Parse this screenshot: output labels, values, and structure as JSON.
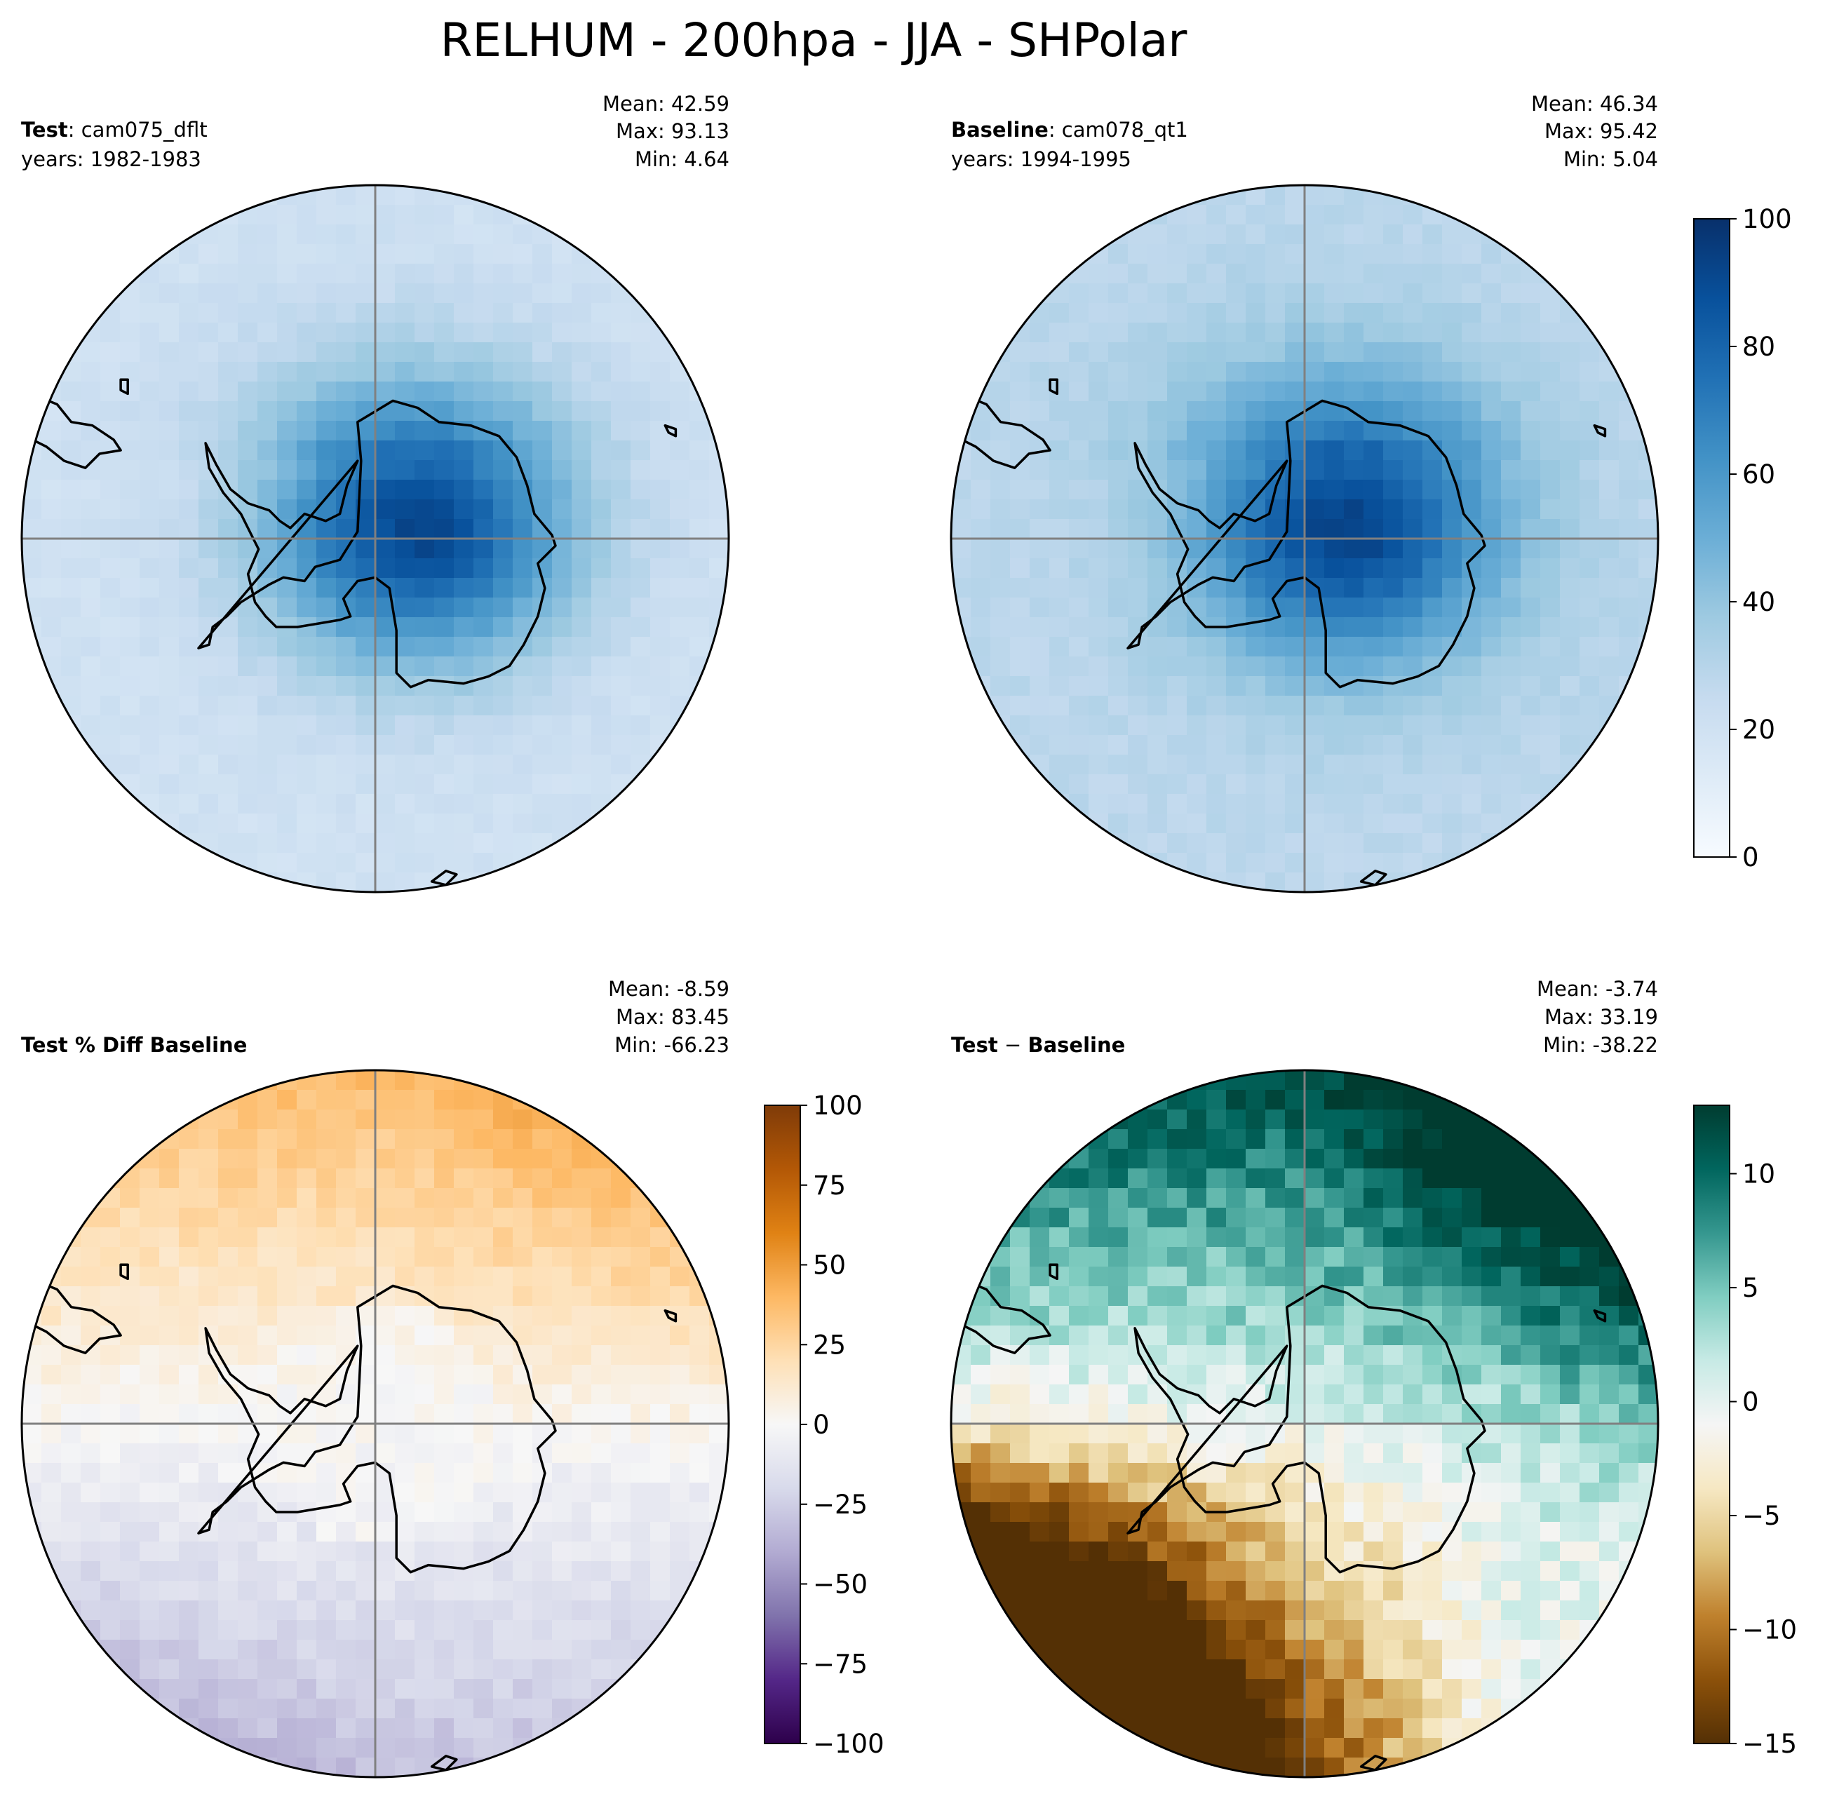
{
  "figure_title": "RELHUM - 200hpa - JJA - SHPolar",
  "panels": [
    {
      "id": "test",
      "label_bold": "Test",
      "label_rest": ": cam075_dflt",
      "years": "years: 1982-1983",
      "stats": {
        "mean": "Mean: 42.59",
        "max": "Max: 93.13",
        "min": "Min:  4.64"
      },
      "colormap": "Blues",
      "field": {
        "center_value": 92,
        "edge_value": 20,
        "bias": 0
      }
    },
    {
      "id": "baseline",
      "label_bold": "Baseline",
      "label_rest": ": cam078_qt1",
      "years": "years: 1994-1995",
      "stats": {
        "mean": "Mean: 46.34",
        "max": "Max: 95.42",
        "min": "Min:  5.04"
      },
      "colormap": "Blues",
      "field": {
        "center_value": 93,
        "edge_value": 28,
        "bias": 0
      }
    },
    {
      "id": "pctdiff",
      "label_bold": "Test % Diff Baseline",
      "label_rest": "",
      "years": "",
      "stats": {
        "mean": "Mean: -8.59",
        "max": "Max: 83.45",
        "min": "Min: -66.23"
      },
      "colormap": "PuOr_r",
      "field": {
        "north_value": 32,
        "south_value": -35,
        "center_value": 0
      }
    },
    {
      "id": "diff",
      "label_bold": "Test",
      "label_op": " − ",
      "label_rest": "Baseline",
      "years": "",
      "stats": {
        "mean": "Mean: -3.74",
        "max": "Max: 33.19",
        "min": "Min: -38.22"
      },
      "colormap": "BrBG",
      "field": {
        "north_value": 9,
        "south_value": -15,
        "east_value": 7,
        "west_value": -9
      }
    }
  ],
  "colorbars": [
    {
      "id": "cbar-main",
      "ticks": [
        "0",
        "20",
        "40",
        "60",
        "80",
        "100"
      ],
      "min": 0,
      "max": 100,
      "colormap": "Blues"
    },
    {
      "id": "cbar-pctdiff",
      "ticks": [
        "−100",
        "−75",
        "−50",
        "−25",
        "0",
        "25",
        "50",
        "75",
        "100"
      ],
      "min": -100,
      "max": 100,
      "colormap": "PuOr_r"
    },
    {
      "id": "cbar-diff",
      "ticks": [
        "−15",
        "−10",
        "−5",
        "0",
        "5",
        "10"
      ],
      "tick_values": [
        -15,
        -10,
        -5,
        0,
        5,
        10
      ],
      "min": -15,
      "max": 13,
      "colormap": "BrBG"
    }
  ],
  "chart_data": [
    {
      "type": "heatmap",
      "title": "Test : cam075_dflt",
      "projection": "south polar stereographic",
      "vmin": 0,
      "vmax": 100,
      "mean": 42.59,
      "max": 93.13,
      "min": 4.64
    },
    {
      "type": "heatmap",
      "title": "Baseline : cam078_qt1",
      "projection": "south polar stereographic",
      "vmin": 0,
      "vmax": 100,
      "mean": 46.34,
      "max": 95.42,
      "min": 5.04
    },
    {
      "type": "heatmap",
      "title": "Test % Diff Baseline",
      "projection": "south polar stereographic",
      "vmin": -100,
      "vmax": 100,
      "mean": -8.59,
      "max": 83.45,
      "min": -66.23
    },
    {
      "type": "heatmap",
      "title": "Test − Baseline",
      "projection": "south polar stereographic",
      "vmin": -15,
      "vmax": 13,
      "mean": -3.74,
      "max": 33.19,
      "min": -38.22
    }
  ]
}
